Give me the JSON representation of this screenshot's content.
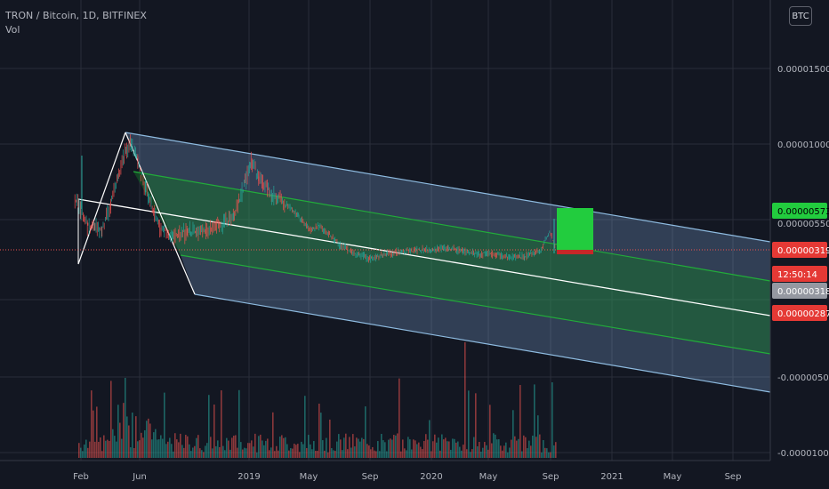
{
  "legend": {
    "symbol": "TRON / Bitcoin, 1D, BITFINEX",
    "volume_label": "Vol"
  },
  "currency_button": "BTC",
  "colors": {
    "background": "#131722",
    "up": "#26a69a",
    "down": "#ef5350",
    "channel_outer": "#8ebbe0",
    "channel_inner": "#22ab3a",
    "median_line": "#ffffff",
    "target_box": "#22cc3e",
    "stop_box": "#c62828"
  },
  "chart_data": {
    "type": "candlestick",
    "x_ticks": [
      "Feb",
      "Jun",
      "2019",
      "May",
      "Sep",
      "2020",
      "May",
      "Sep",
      "2021",
      "May",
      "Sep"
    ],
    "y_ticks": [
      "0.00001500",
      "0.00001000",
      "-0.00000500",
      "-0.00001000"
    ],
    "ylim": [
      -1e-05,
      1.8e-05
    ],
    "price_series": [
      [
        "2018-01-20",
        6.5e-06
      ],
      [
        "2018-02-01",
        5.6e-06
      ],
      [
        "2018-02-15",
        4.5e-06
      ],
      [
        "2018-03-01",
        4.8e-06
      ],
      [
        "2018-03-15",
        4.2e-06
      ],
      [
        "2018-04-01",
        6e-06
      ],
      [
        "2018-04-15",
        8e-06
      ],
      [
        "2018-05-01",
        9.5e-06
      ],
      [
        "2018-05-10",
        1e-05
      ],
      [
        "2018-05-25",
        8.8e-06
      ],
      [
        "2018-06-10",
        7e-06
      ],
      [
        "2018-06-25",
        5.5e-06
      ],
      [
        "2018-07-10",
        4.4e-06
      ],
      [
        "2018-08-01",
        3.9e-06
      ],
      [
        "2018-09-01",
        4.2e-06
      ],
      [
        "2018-10-01",
        4.3e-06
      ],
      [
        "2018-11-01",
        4.6e-06
      ],
      [
        "2018-12-01",
        5.2e-06
      ],
      [
        "2018-12-20",
        7e-06
      ],
      [
        "2019-01-05",
        8.8e-06
      ],
      [
        "2019-01-20",
        7.8e-06
      ],
      [
        "2019-02-15",
        6.6e-06
      ],
      [
        "2019-03-15",
        6e-06
      ],
      [
        "2019-04-10",
        5.2e-06
      ],
      [
        "2019-05-01",
        4.3e-06
      ],
      [
        "2019-05-20",
        4.6e-06
      ],
      [
        "2019-06-10",
        4e-06
      ],
      [
        "2019-07-01",
        3.3e-06
      ],
      [
        "2019-08-01",
        2.7e-06
      ],
      [
        "2019-09-01",
        2.4e-06
      ],
      [
        "2019-10-01",
        2.7e-06
      ],
      [
        "2019-11-01",
        2.9e-06
      ],
      [
        "2019-12-01",
        3e-06
      ],
      [
        "2020-01-01",
        3e-06
      ],
      [
        "2020-02-01",
        3.1e-06
      ],
      [
        "2020-03-01",
        2.9e-06
      ],
      [
        "2020-04-01",
        2.7e-06
      ],
      [
        "2020-05-01",
        2.7e-06
      ],
      [
        "2020-06-01",
        2.5e-06
      ],
      [
        "2020-07-01",
        2.6e-06
      ],
      [
        "2020-08-01",
        2.9e-06
      ],
      [
        "2020-08-20",
        4.2e-06
      ],
      [
        "2020-09-01",
        3.19e-06
      ]
    ],
    "price_labels": {
      "target": "0.00000573",
      "entry": "0.00000319",
      "countdown": "12:50:14",
      "current": "0.00000318",
      "stop": "0.00000287"
    },
    "partial_label": "0.00000550",
    "drawings": [
      "pitchfork",
      "long-position"
    ]
  }
}
